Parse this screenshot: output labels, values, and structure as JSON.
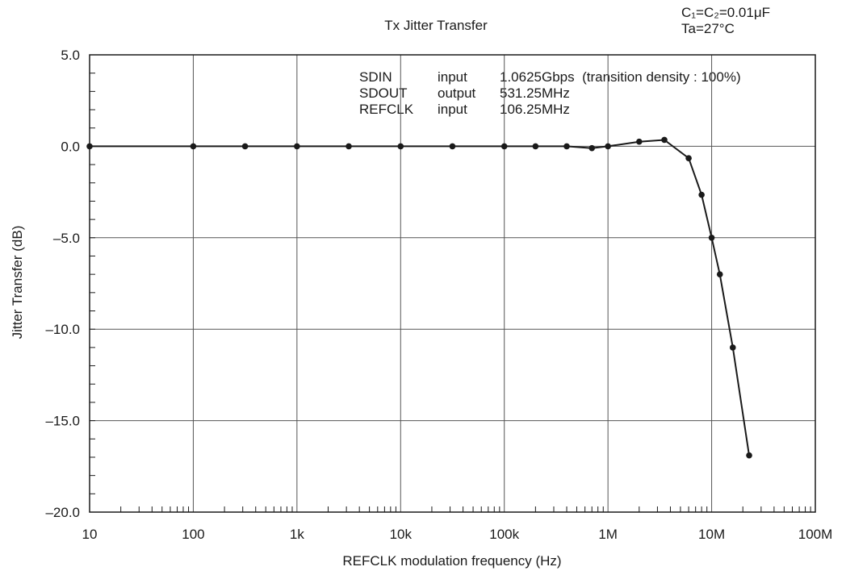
{
  "chart_data": {
    "type": "line",
    "title": "Tx Jitter Transfer",
    "conditions": [
      "C₁=C₂=0.01μF",
      "Ta=27°C"
    ],
    "xlabel": "REFCLK modulation frequency (Hz)",
    "ylabel": "Jitter Transfer (dB)",
    "x_scale": "log",
    "xlim": [
      10,
      100000000
    ],
    "ylim": [
      -20,
      5
    ],
    "x_ticks": [
      10,
      100,
      1000,
      10000,
      100000,
      1000000,
      10000000,
      100000000
    ],
    "x_tick_labels": [
      "10",
      "100",
      "1k",
      "10k",
      "100k",
      "1M",
      "10M",
      "100M"
    ],
    "y_ticks": [
      5,
      0,
      -5,
      -10,
      -15,
      -20
    ],
    "y_tick_labels": [
      "5.0",
      "0.0",
      "–5.0",
      "–10.0",
      "–15.0",
      "–20.0"
    ],
    "grid": true,
    "annotation_rows": [
      [
        "SDIN",
        "input",
        "1.0625Gbps  (transition density : 100%)"
      ],
      [
        "SDOUT",
        "output",
        "531.25MHz"
      ],
      [
        "REFCLK",
        "input",
        "106.25MHz"
      ]
    ],
    "series": [
      {
        "x": [
          10,
          100,
          316,
          1000,
          3160,
          10000,
          31600,
          100000,
          200000,
          400000,
          700000,
          1000000,
          2000000,
          3500000,
          6000000,
          8000000,
          10000000,
          12000000,
          16000000,
          23000000
        ],
        "y": [
          0,
          0,
          0,
          0,
          0,
          0,
          0,
          0,
          0,
          0,
          -0.1,
          0,
          0.25,
          0.35,
          -0.65,
          -2.65,
          -5.0,
          -7.0,
          -11.0,
          -16.9
        ]
      }
    ],
    "colors": {
      "line": "#1a1a1a",
      "grid": "#555555",
      "axis": "#1a1a1a"
    }
  }
}
